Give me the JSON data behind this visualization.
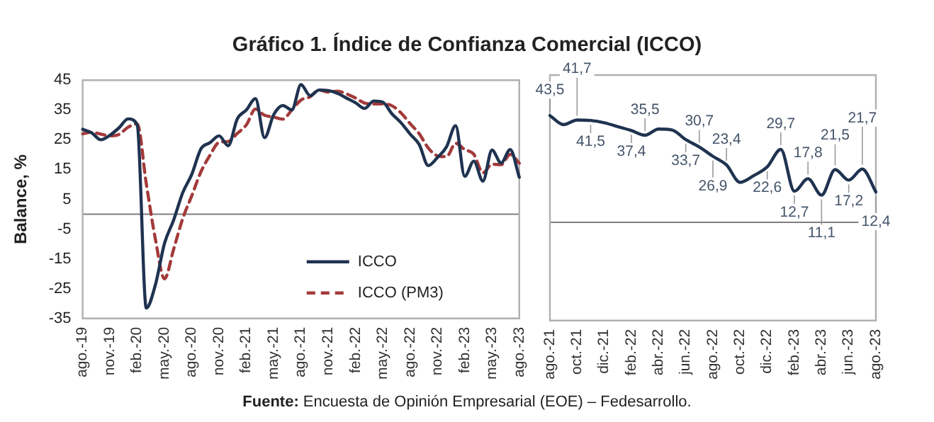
{
  "chart_data": [
    {
      "type": "line",
      "title": "Gráfico 1. Índice de Confianza Comercial (ICCO)",
      "ylabel": "Balance, %",
      "categories": [
        "ago.-19",
        null,
        null,
        "nov.-19",
        null,
        null,
        "feb.-20",
        null,
        null,
        "may.-20",
        null,
        null,
        "ago.-20",
        null,
        null,
        "nov.-20",
        null,
        null,
        "feb.-21",
        null,
        null,
        "may.-21",
        null,
        null,
        "ago.-21",
        null,
        null,
        "nov.-21",
        null,
        null,
        "feb.-22",
        null,
        null,
        "may.-22",
        null,
        null,
        "ago.-22",
        null,
        null,
        "nov.-22",
        null,
        null,
        "feb.-23",
        null,
        null,
        "may.-23",
        null,
        null,
        "ago.-23"
      ],
      "series": [
        {
          "name": "ICCO",
          "color": "#1f3350",
          "line_style": "solid",
          "values": [
            28.5,
            27.3,
            25.0,
            26.5,
            29.0,
            32.0,
            30.0,
            -31.5,
            -23.7,
            -9.8,
            -2.0,
            7.2,
            13.4,
            21.9,
            24.0,
            26.3,
            23.0,
            32.0,
            35.0,
            38.8,
            25.7,
            33.4,
            36.5,
            35.0,
            43.5,
            39.8,
            41.7,
            41.5,
            40.6,
            39.0,
            37.4,
            35.5,
            38.0,
            37.6,
            33.7,
            30.7,
            26.9,
            23.4,
            16.3,
            19.0,
            22.6,
            29.7,
            12.7,
            17.8,
            11.1,
            21.5,
            17.2,
            21.7,
            12.4
          ]
        },
        {
          "name": "ICCO (PM3)",
          "color": "#a33a3a",
          "line_style": "dashed",
          "values": [
            27.0,
            27.5,
            26.9,
            26.3,
            26.8,
            29.2,
            30.3,
            10.2,
            -8.4,
            -21.7,
            -11.8,
            -1.5,
            6.2,
            14.2,
            19.8,
            24.1,
            24.4,
            27.1,
            30.0,
            35.3,
            33.2,
            32.6,
            31.9,
            35.0,
            38.3,
            39.4,
            41.7,
            41.0,
            41.3,
            40.4,
            39.0,
            37.3,
            37.0,
            37.0,
            36.4,
            34.0,
            30.4,
            27.0,
            22.2,
            19.6,
            19.3,
            23.8,
            21.7,
            20.1,
            13.9,
            16.8,
            16.6,
            20.1,
            17.1
          ]
        }
      ],
      "ylim": [
        -35,
        45
      ],
      "yticks": [
        -35,
        -25,
        -15,
        -5,
        5,
        15,
        25,
        35,
        45
      ],
      "legend": "bottom right",
      "ref_lines": [
        {
          "axis": "y",
          "value": 0,
          "color": "#7f7f7f"
        }
      ],
      "annotations": [
        "Fuente: Encuesta de Opinión Empresarial (EOE) – Fedesarrollo."
      ]
    },
    {
      "type": "line",
      "categories": [
        "ago.-21",
        null,
        "oct.-21",
        null,
        "dic.-21",
        null,
        "feb.-22",
        null,
        "abr.-22",
        null,
        "jun.-22",
        null,
        "ago.-22",
        null,
        "oct.-22",
        null,
        "dic.-22",
        null,
        "feb.-23",
        null,
        "abr.-23",
        null,
        "jun.-23",
        null,
        "ago.-23"
      ],
      "series": [
        {
          "color": "#1f3350",
          "values": [
            43.5,
            39.8,
            41.7,
            41.5,
            40.6,
            39.0,
            37.4,
            35.5,
            38.0,
            37.6,
            33.7,
            30.7,
            26.9,
            23.4,
            16.3,
            19.0,
            22.6,
            29.7,
            12.7,
            17.8,
            11.1,
            21.5,
            17.2,
            21.7,
            12.4
          ],
          "value_labels": [
            "43,5",
            null,
            "41,7",
            "41,5",
            null,
            null,
            "37,4",
            "35,5",
            null,
            null,
            "33,7",
            "30,7",
            "26,9",
            "23,4",
            null,
            null,
            "22,6",
            "29,7",
            "12,7",
            "17,8",
            "11,1",
            "21,5",
            "17,2",
            "21,7",
            "12,4"
          ]
        }
      ],
      "ylim": [
        -40,
        60
      ],
      "tick_labels": "x",
      "ref_lines": [
        {
          "axis": "y",
          "value": 0,
          "color": "#7f7f7f"
        }
      ]
    }
  ]
}
